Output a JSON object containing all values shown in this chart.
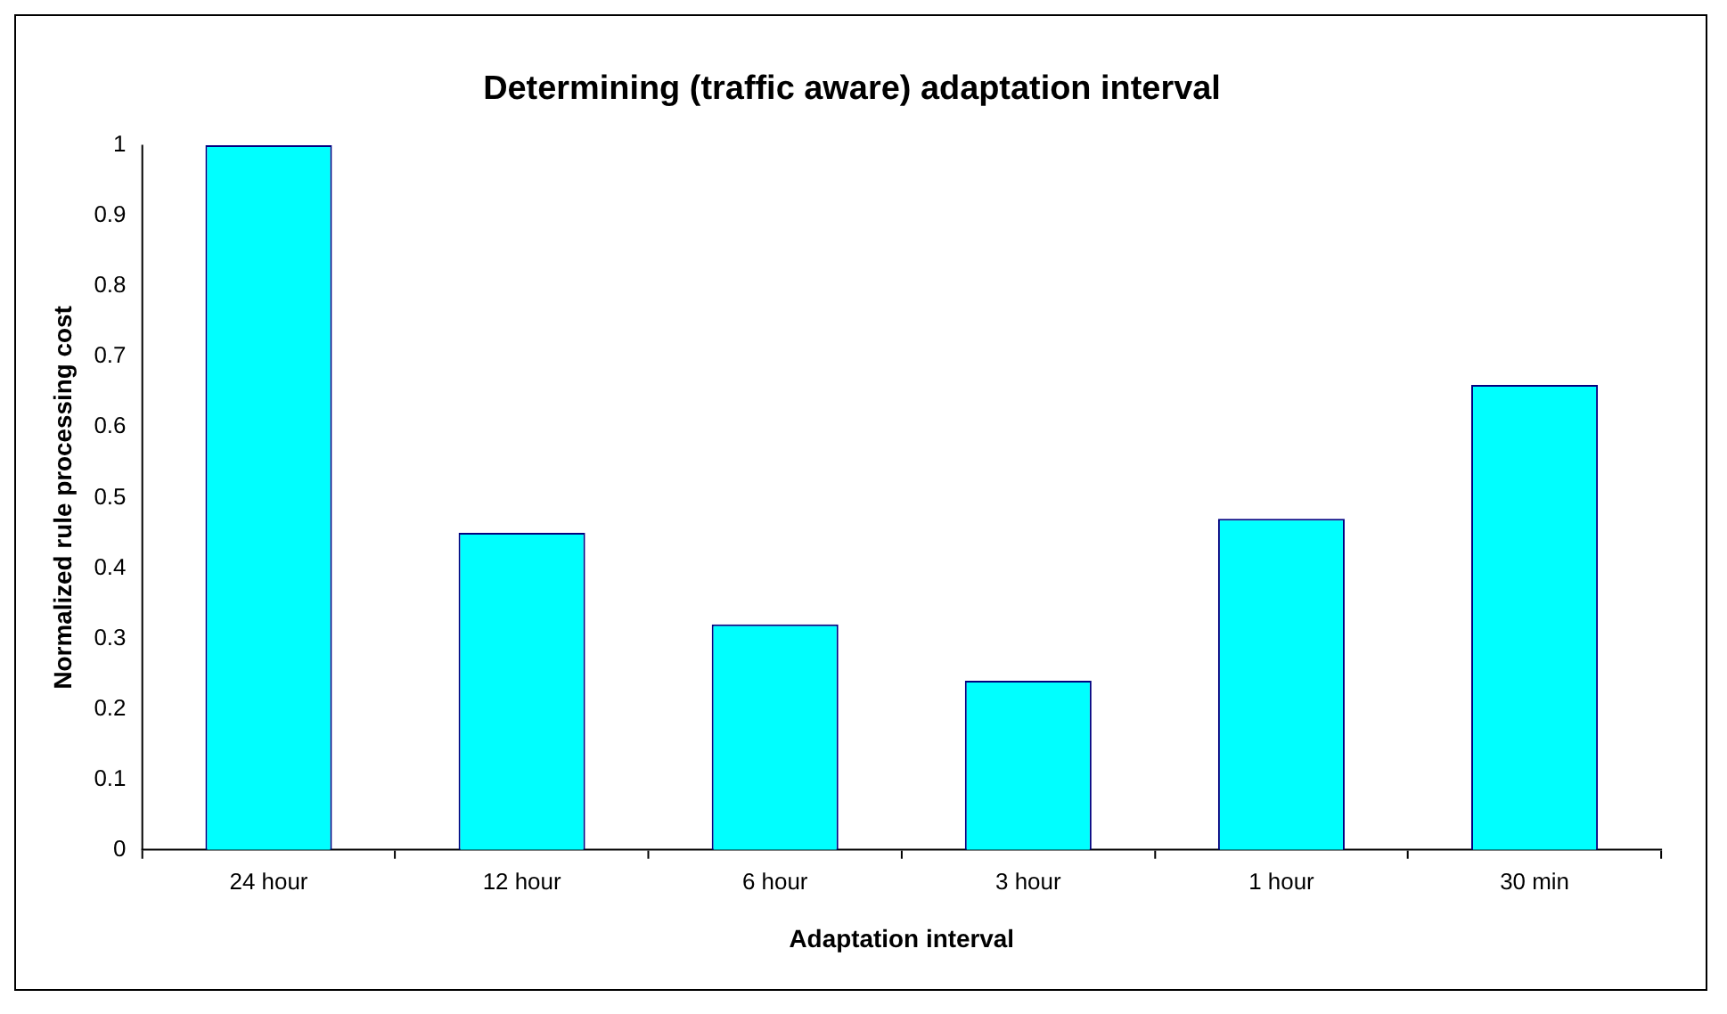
{
  "chart_data": {
    "type": "bar",
    "title": "Determining (traffic aware) adaptation interval",
    "xlabel": "Adaptation interval",
    "ylabel": "Normalized rule processing cost",
    "categories": [
      "24 hour",
      "12 hour",
      "6 hour",
      "3 hour",
      "1 hour",
      "30 min"
    ],
    "values": [
      1.0,
      0.45,
      0.32,
      0.24,
      0.47,
      0.66
    ],
    "color": "#00ffff",
    "ylim": [
      0,
      1
    ],
    "yticks": [
      0,
      0.1,
      0.2,
      0.3,
      0.4,
      0.5,
      0.6,
      0.7,
      0.8,
      0.9,
      1
    ],
    "grid": false,
    "legend": false
  }
}
